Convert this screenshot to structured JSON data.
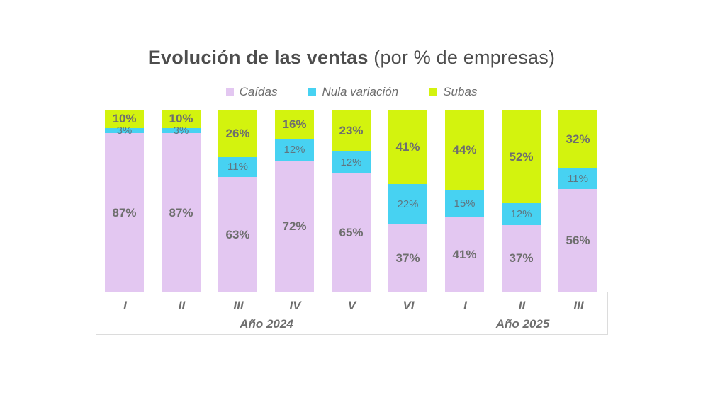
{
  "title": {
    "bold": "Evolución de las ventas",
    "regular": " (por % de empresas)"
  },
  "legend": {
    "items": [
      {
        "label": "Caídas",
        "color": "#e3c7f1"
      },
      {
        "label": "Nula variación",
        "color": "#47d2f2"
      },
      {
        "label": "Subas",
        "color": "#d3f30e"
      }
    ]
  },
  "chart_data": {
    "type": "bar",
    "stacked": true,
    "orientation": "vertical",
    "title": "Evolución de las ventas (por % de empresas)",
    "value_suffix": "%",
    "ylim": [
      0,
      100
    ],
    "grid": false,
    "legend_position": "top",
    "categories": [
      "I",
      "II",
      "III",
      "IV",
      "V",
      "VI",
      "I",
      "II",
      "III"
    ],
    "groups": [
      {
        "label": "Año 2024",
        "span": 6
      },
      {
        "label": "Año 2025",
        "span": 3
      }
    ],
    "series": [
      {
        "name": "Caídas",
        "color": "#e3c7f1",
        "label_style": "big",
        "values": [
          87,
          87,
          63,
          72,
          65,
          37,
          41,
          37,
          56
        ]
      },
      {
        "name": "Nula variación",
        "color": "#47d2f2",
        "label_style": "small",
        "values": [
          3,
          3,
          11,
          12,
          12,
          22,
          15,
          12,
          11
        ]
      },
      {
        "name": "Subas",
        "color": "#d3f30e",
        "label_style": "big",
        "values": [
          10,
          10,
          26,
          16,
          23,
          41,
          44,
          52,
          32
        ]
      }
    ]
  },
  "colors": {
    "title_text": "#4d4d4d",
    "label_text": "#6e6e6e",
    "axis_border": "#dcdcdc",
    "background": "#ffffff"
  }
}
